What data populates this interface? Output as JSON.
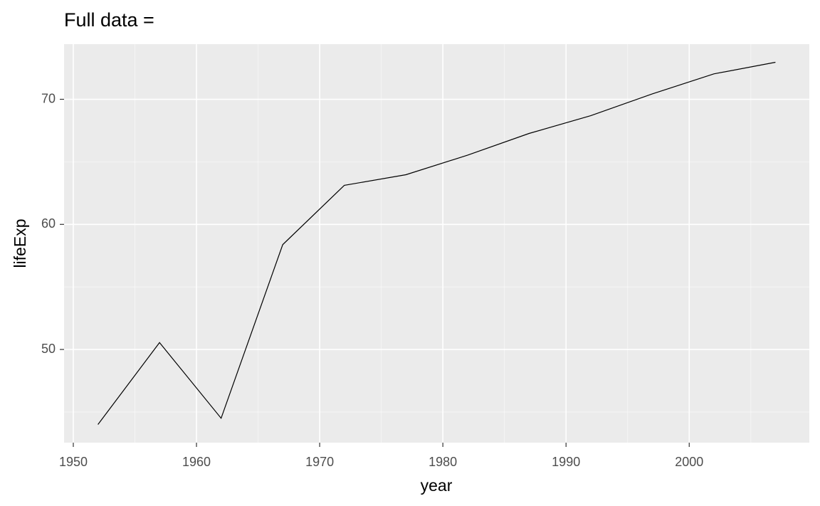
{
  "chart_data": {
    "type": "line",
    "title": "Full data =",
    "x_label": "year",
    "y_label": "lifeExp",
    "x": [
      1952,
      1957,
      1962,
      1967,
      1972,
      1977,
      1982,
      1987,
      1992,
      1997,
      2002,
      2007
    ],
    "series": [
      {
        "color": "#000000",
        "values": [
          44.0,
          50.55,
          44.5,
          58.38,
          63.12,
          63.97,
          65.53,
          67.27,
          68.69,
          70.43,
          72.03,
          72.96
        ]
      }
    ],
    "xlim": [
      1949.25,
      2009.75
    ],
    "ylim": [
      42.55,
      74.41
    ],
    "xticks": [
      1950,
      1960,
      1970,
      1980,
      1990,
      2000
    ],
    "yticks": [
      50,
      60,
      70
    ],
    "grid": true,
    "minor_grid": true,
    "panel_color": "#ebebeb"
  }
}
